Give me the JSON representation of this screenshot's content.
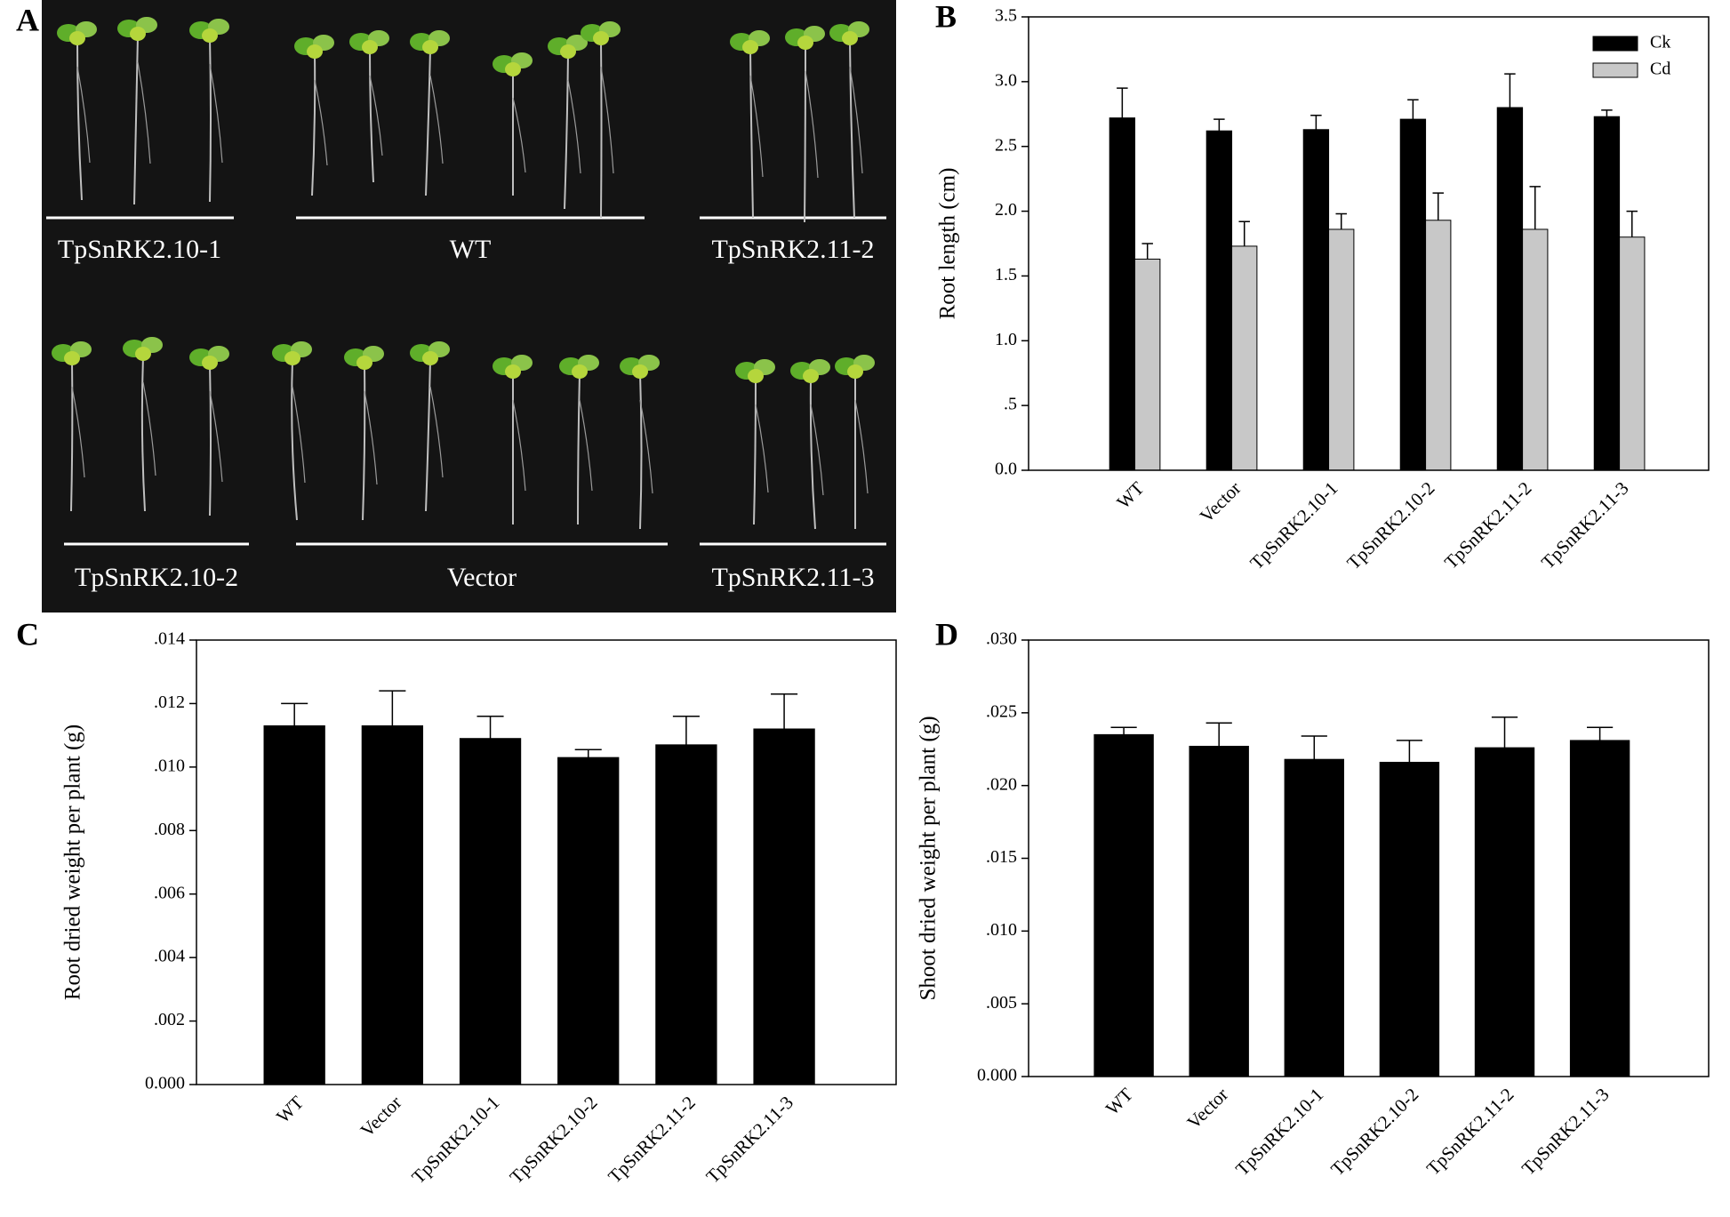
{
  "photo": {
    "panel_label": "A",
    "captions": [
      "TpSnRK2.10-1",
      "WT",
      "TpSnRK2.11-2",
      "TpSnRK2.10-2",
      "Vector",
      "TpSnRK2.11-3"
    ]
  },
  "chart_data": [
    {
      "type": "bar",
      "panel_label": "B",
      "y_label": "Root length (cm)",
      "categories": [
        "WT",
        "Vector",
        "TpSnRK2.10-1",
        "TpSnRK2.10-2",
        "TpSnRK2.11-2",
        "TpSnRK2.11-3"
      ],
      "series": [
        {
          "name": "Ck",
          "color": "#000000",
          "values": [
            2.72,
            2.62,
            2.63,
            2.71,
            2.8,
            2.73
          ],
          "errors": [
            0.23,
            0.09,
            0.11,
            0.15,
            0.26,
            0.05
          ]
        },
        {
          "name": "Cd",
          "color": "#c8c8c8",
          "values": [
            1.63,
            1.73,
            1.86,
            1.93,
            1.86,
            1.8
          ],
          "errors": [
            0.12,
            0.19,
            0.12,
            0.21,
            0.33,
            0.2
          ]
        }
      ],
      "ylim": [
        0,
        3.5
      ],
      "yticks": [
        {
          "value": 0,
          "label": "0.0"
        },
        {
          "value": 0.5,
          "label": ".5"
        },
        {
          "value": 1,
          "label": "1.0"
        },
        1.5,
        {
          "value": 2,
          "label": "2.0"
        },
        2.5,
        {
          "value": 3,
          "label": "3.0"
        },
        3.5
      ],
      "legend": "upper right"
    },
    {
      "type": "bar",
      "panel_label": "C",
      "y_label": "Root dried weight per plant (g)",
      "categories": [
        "WT",
        "Vector",
        "TpSnRK2.10-1",
        "TpSnRK2.10-2",
        "TpSnRK2.11-2",
        "TpSnRK2.11-3"
      ],
      "series": [
        {
          "color": "#000000",
          "values": [
            0.0113,
            0.0113,
            0.0109,
            0.0103,
            0.0107,
            0.0112
          ],
          "errors": [
            0.0007,
            0.0011,
            0.0007,
            0.00025,
            0.0009,
            0.0011
          ]
        }
      ],
      "ylim": [
        0,
        0.014
      ],
      "yticks": [
        {
          "value": 0,
          "label": "0.000"
        },
        {
          "value": 0.002,
          "label": ".002"
        },
        {
          "value": 0.004,
          "label": ".004"
        },
        {
          "value": 0.006,
          "label": ".006"
        },
        {
          "value": 0.008,
          "label": ".008"
        },
        {
          "value": 0.01,
          "label": ".010"
        },
        {
          "value": 0.012,
          "label": ".012"
        },
        {
          "value": 0.014,
          "label": ".014"
        }
      ]
    },
    {
      "type": "bar",
      "panel_label": "D",
      "y_label": "Shoot dried weight per plant (g)",
      "categories": [
        "WT",
        "Vector",
        "TpSnRK2.10-1",
        "TpSnRK2.10-2",
        "TpSnRK2.11-2",
        "TpSnRK2.11-3"
      ],
      "series": [
        {
          "color": "#000000",
          "values": [
            0.0235,
            0.0227,
            0.0218,
            0.0216,
            0.0226,
            0.0231
          ],
          "errors": [
            0.0005,
            0.0016,
            0.0016,
            0.0015,
            0.0021,
            0.0009
          ]
        }
      ],
      "ylim": [
        0,
        0.03
      ],
      "yticks": [
        {
          "value": 0,
          "label": "0.000"
        },
        {
          "value": 0.005,
          "label": ".005"
        },
        {
          "value": 0.01,
          "label": ".010"
        },
        {
          "value": 0.015,
          "label": ".015"
        },
        {
          "value": 0.02,
          "label": ".020"
        },
        {
          "value": 0.025,
          "label": ".025"
        },
        {
          "value": 0.03,
          "label": ".030"
        }
      ]
    }
  ]
}
